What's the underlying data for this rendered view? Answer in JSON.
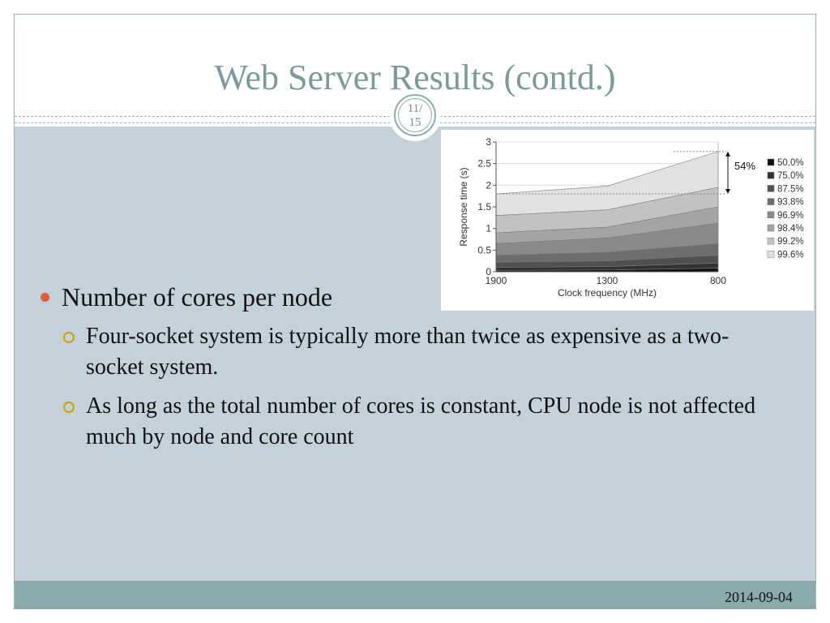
{
  "slide": {
    "title": "Web Server Results (contd.)",
    "page_current": "11/",
    "page_total": "15",
    "date": "2014-09-04"
  },
  "bullets": {
    "main": "Number of cores per node",
    "sub": [
      "Four-socket system is typically more than twice as expensive as a two-socket system.",
      "As long as the total number of cores is constant, CPU node is not affected much by node and core count"
    ]
  },
  "colors": {
    "title": "#7a9a9c",
    "content_bg": "#c5d1d8",
    "footer_bg": "#8aaaab",
    "bullet_dot": "#d8603e",
    "sub_bullet_ring": "#c6a300"
  },
  "chart_data": {
    "type": "area",
    "stacking": "cumulative percentile bands",
    "xlabel": "Clock frequency (MHz)",
    "ylabel": "Response time (s)",
    "categories": [
      "1900",
      "1300",
      "800"
    ],
    "ylim": [
      0,
      3
    ],
    "yticks": [
      "0",
      "0.5",
      "1",
      "1.5",
      "2",
      "2.5",
      "3"
    ],
    "grid": true,
    "legend_position": "right",
    "annotation": "54%",
    "series": [
      {
        "name": "50.0%",
        "values": [
          0.03,
          0.04,
          0.08
        ],
        "color": "#111111"
      },
      {
        "name": "75.0%",
        "values": [
          0.1,
          0.12,
          0.2
        ],
        "color": "#333333"
      },
      {
        "name": "87.5%",
        "values": [
          0.22,
          0.25,
          0.38
        ],
        "color": "#505050"
      },
      {
        "name": "93.8%",
        "values": [
          0.38,
          0.45,
          0.65
        ],
        "color": "#6d6d6d"
      },
      {
        "name": "96.9%",
        "values": [
          0.65,
          0.78,
          1.12
        ],
        "color": "#8a8a8a"
      },
      {
        "name": "98.4%",
        "values": [
          0.9,
          1.03,
          1.5
        ],
        "color": "#a4a4a4"
      },
      {
        "name": "99.2%",
        "values": [
          1.3,
          1.43,
          1.95
        ],
        "color": "#c2c2c2"
      },
      {
        "name": "99.6%",
        "values": [
          1.8,
          1.98,
          2.78
        ],
        "color": "#e1e1e1"
      }
    ]
  }
}
